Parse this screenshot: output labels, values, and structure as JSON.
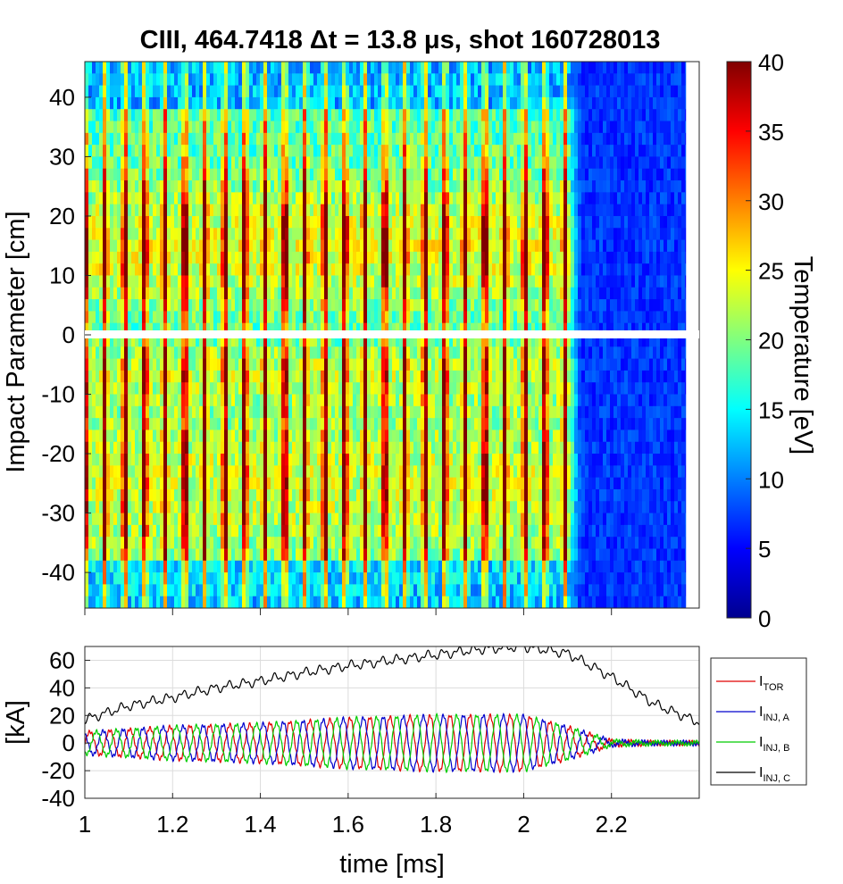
{
  "chart_data": [
    {
      "type": "heatmap",
      "title": "CIII, 464.7418 Δt = 13.8 μs, shot 160728013",
      "ylabel": "Impact Parameter [cm]",
      "xlim": [
        1.0,
        2.4
      ],
      "ylim": [
        -46,
        46
      ],
      "x_ticks": [
        1.0,
        1.2,
        1.4,
        1.6,
        1.8,
        2.0,
        2.2
      ],
      "y_ticks": [
        40,
        30,
        20,
        10,
        0,
        -10,
        -20,
        -30,
        -40
      ],
      "y_tick_labels": [
        "40",
        "30",
        "20",
        "10",
        "0",
        "-10",
        "-20",
        "-30",
        "-40"
      ],
      "colorbar": {
        "label": "Temperature [eV]",
        "range": [
          0,
          40
        ],
        "ticks": [
          0,
          5,
          10,
          15,
          20,
          25,
          30,
          35,
          40
        ],
        "tick_labels": [
          "0",
          "5",
          "10",
          "15",
          "20",
          "25",
          "30",
          "35",
          "40"
        ],
        "colormap": "jet"
      },
      "description_values": {
        "oscillation_period_ms": 0.0456,
        "hot_peak_eV": 40,
        "warm_background_eV": 22,
        "upper_hot_band_cm": [
          5,
          25
        ],
        "lower_hot_band_cm": [
          -3,
          -9
        ],
        "cooling_time_ms": 2.1,
        "cold_level_eV": 5
      }
    },
    {
      "type": "line",
      "xlabel": "time [ms]",
      "ylabel": "[kA]",
      "xlim": [
        1.0,
        2.4
      ],
      "ylim": [
        -40,
        70
      ],
      "x_ticks": [
        1.0,
        1.2,
        1.4,
        1.6,
        1.8,
        2.0,
        2.2
      ],
      "x_tick_labels": [
        "1",
        "1.2",
        "1.4",
        "1.6",
        "1.8",
        "2",
        "2.2"
      ],
      "y_ticks": [
        60,
        40,
        20,
        0,
        -20,
        -40
      ],
      "y_tick_labels": [
        "60",
        "40",
        "20",
        "0",
        "-20",
        "-40"
      ],
      "grid": true,
      "legend": "right",
      "x": [
        1.0,
        1.1,
        1.2,
        1.3,
        1.4,
        1.5,
        1.6,
        1.7,
        1.8,
        1.9,
        2.0,
        2.1,
        2.2,
        2.3,
        2.4
      ],
      "series": [
        {
          "name": "TOR",
          "label_main": "I",
          "label_sub": "TOR",
          "color": "#e00000",
          "kind": "oscillation",
          "period_ms": 0.0456,
          "phase": 0.0,
          "amplitude_kA": [
            8,
            10,
            12,
            13,
            14,
            16,
            18,
            19,
            20,
            20,
            20,
            12,
            2,
            1,
            1
          ],
          "offset_kA": [
            0,
            0,
            0,
            0,
            0,
            0,
            0,
            0,
            0,
            0,
            0,
            0,
            0,
            0,
            0
          ]
        },
        {
          "name": "INJ, A",
          "label_main": "I",
          "label_sub": "INJ, A",
          "color": "#0000cc",
          "kind": "oscillation",
          "period_ms": 0.0456,
          "phase": 2.094,
          "amplitude_kA": [
            8,
            10,
            12,
            13,
            14,
            16,
            18,
            19,
            20,
            20,
            20,
            12,
            2,
            1,
            1
          ],
          "offset_kA": [
            0,
            0,
            0,
            0,
            0,
            0,
            0,
            0,
            0,
            0,
            0,
            0,
            0,
            0,
            0
          ]
        },
        {
          "name": "INJ, B",
          "label_main": "I",
          "label_sub": "INJ, B",
          "color": "#00cc00",
          "kind": "oscillation",
          "period_ms": 0.0456,
          "phase": 4.189,
          "amplitude_kA": [
            8,
            10,
            12,
            13,
            14,
            16,
            18,
            19,
            20,
            20,
            20,
            12,
            2,
            1,
            1
          ],
          "offset_kA": [
            0,
            0,
            0,
            0,
            0,
            0,
            0,
            0,
            0,
            0,
            0,
            0,
            0,
            0,
            0
          ]
        },
        {
          "name": "INJ, C",
          "label_main": "I",
          "label_sub": "INJ, C",
          "color": "#000000",
          "kind": "trend",
          "values_kA": [
            17,
            27,
            33,
            40,
            45,
            51,
            56,
            60,
            64,
            68,
            70,
            65,
            48,
            28,
            15
          ]
        }
      ]
    }
  ]
}
